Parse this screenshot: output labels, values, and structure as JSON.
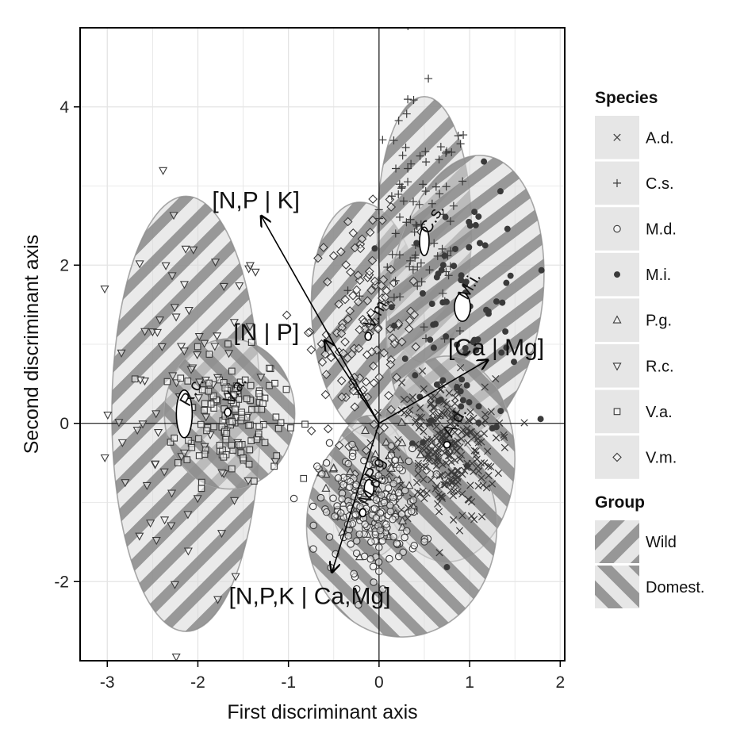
{
  "chart_data": {
    "type": "scatter",
    "xlabel": "First discriminant axis",
    "ylabel": "Second discriminant axis",
    "xlim": [
      -3.3,
      2.05
    ],
    "ylim": [
      -3.0,
      5.0
    ],
    "x_ticks": [
      -3,
      -2,
      -1,
      0,
      1,
      2
    ],
    "y_ticks": [
      -2,
      0,
      2,
      4
    ],
    "x_tick_labels": [
      "-3",
      "-2",
      "-1",
      "0",
      "1",
      "2"
    ],
    "y_tick_labels": [
      "-2",
      "0",
      "2",
      "4"
    ],
    "grid": true,
    "legend_position": "right",
    "species_legend": {
      "title": "Species",
      "items": [
        {
          "label": "A.d.",
          "shape": "x"
        },
        {
          "label": "C.s.",
          "shape": "plus"
        },
        {
          "label": "M.d.",
          "shape": "circle-open"
        },
        {
          "label": "M.i.",
          "shape": "circle-filled"
        },
        {
          "label": "P.g.",
          "shape": "triangle-up"
        },
        {
          "label": "R.c.",
          "shape": "triangle-down"
        },
        {
          "label": "V.a.",
          "shape": "square"
        },
        {
          "label": "V.m.",
          "shape": "diamond"
        }
      ]
    },
    "group_legend": {
      "title": "Group",
      "items": [
        {
          "label": "Wild",
          "pattern": "hatch-diagonal-up"
        },
        {
          "label": "Domest.",
          "pattern": "hatch-diagonal-down"
        }
      ]
    },
    "arrows": [
      {
        "label": "[N,P | K]",
        "x": -1.3,
        "y": 2.62
      },
      {
        "label": "[N | P]",
        "x": -0.6,
        "y": 1.05
      },
      {
        "label": "[Ca | Mg]",
        "x": 1.2,
        "y": 0.8
      },
      {
        "label": "[N,P,K | Ca,Mg]",
        "x": -0.52,
        "y": -1.88
      }
    ],
    "centroids": [
      {
        "species": "R.c.",
        "x": -2.15,
        "y": 0.12
      },
      {
        "species": "V.a.",
        "x": -1.67,
        "y": 0.14
      },
      {
        "species": "V.m.",
        "x": -0.12,
        "y": 1.1
      },
      {
        "species": "C.s.",
        "x": 0.5,
        "y": 2.3
      },
      {
        "species": "M.i.",
        "x": 0.92,
        "y": 1.47
      },
      {
        "species": "A.d.",
        "x": 0.75,
        "y": -0.27
      },
      {
        "species": "P.g.",
        "x": -0.11,
        "y": -0.82
      },
      {
        "species": "M.d.",
        "x": -0.18,
        "y": -1.13
      }
    ],
    "ellipses": [
      {
        "species": "R.c.",
        "group": "Wild",
        "cx": -2.13,
        "cy": 0.12,
        "rx": 0.82,
        "ry": 2.75,
        "angle": 0
      },
      {
        "species": "V.a.",
        "group": "Domest.",
        "cx": -1.65,
        "cy": 0.12,
        "rx": 0.72,
        "ry": 0.95,
        "angle": 0
      },
      {
        "species": "V.m.",
        "group": "Wild",
        "cx": -0.12,
        "cy": 1.3,
        "rx": 0.62,
        "ry": 1.5,
        "angle": -5
      },
      {
        "species": "C.s.",
        "group": "Wild",
        "cx": 0.5,
        "cy": 2.45,
        "rx": 0.52,
        "ry": 1.68,
        "angle": 0
      },
      {
        "species": "M.i.",
        "group": "Wild",
        "cx": 0.95,
        "cy": 1.55,
        "rx": 0.85,
        "ry": 1.85,
        "angle": 8
      },
      {
        "species": "A.d.",
        "group": "Domest.",
        "cx": 0.75,
        "cy": -0.45,
        "rx": 0.75,
        "ry": 1.3,
        "angle": 0
      },
      {
        "species": "P.g.",
        "group": "Domest.",
        "cx": -0.1,
        "cy": -0.8,
        "rx": 0.45,
        "ry": 0.9,
        "angle": 0
      },
      {
        "species": "M.d.",
        "group": "Domest.",
        "cx": 0.25,
        "cy": -1.3,
        "rx": 1.05,
        "ry": 1.4,
        "angle": 0
      }
    ],
    "clusters": [
      {
        "species": "R.c.",
        "n": 90,
        "cx": -2.1,
        "cy": 0.2,
        "sx": 0.45,
        "sy": 1.2
      },
      {
        "species": "V.a.",
        "n": 140,
        "cx": -1.65,
        "cy": 0.1,
        "sx": 0.3,
        "sy": 0.4
      },
      {
        "species": "V.m.",
        "n": 130,
        "cx": -0.15,
        "cy": 1.2,
        "sx": 0.3,
        "sy": 0.7
      },
      {
        "species": "C.s.",
        "n": 90,
        "cx": 0.45,
        "cy": 2.4,
        "sx": 0.3,
        "sy": 0.8
      },
      {
        "species": "M.i.",
        "n": 85,
        "cx": 0.95,
        "cy": 1.4,
        "sx": 0.35,
        "sy": 0.8
      },
      {
        "species": "A.d.",
        "n": 260,
        "cx": 0.72,
        "cy": -0.35,
        "sx": 0.28,
        "sy": 0.45
      },
      {
        "species": "P.g.",
        "n": 45,
        "cx": -0.1,
        "cy": -0.8,
        "sx": 0.25,
        "sy": 0.4
      },
      {
        "species": "M.d.",
        "n": 200,
        "cx": -0.1,
        "cy": -1.1,
        "sx": 0.28,
        "sy": 0.38
      }
    ]
  }
}
